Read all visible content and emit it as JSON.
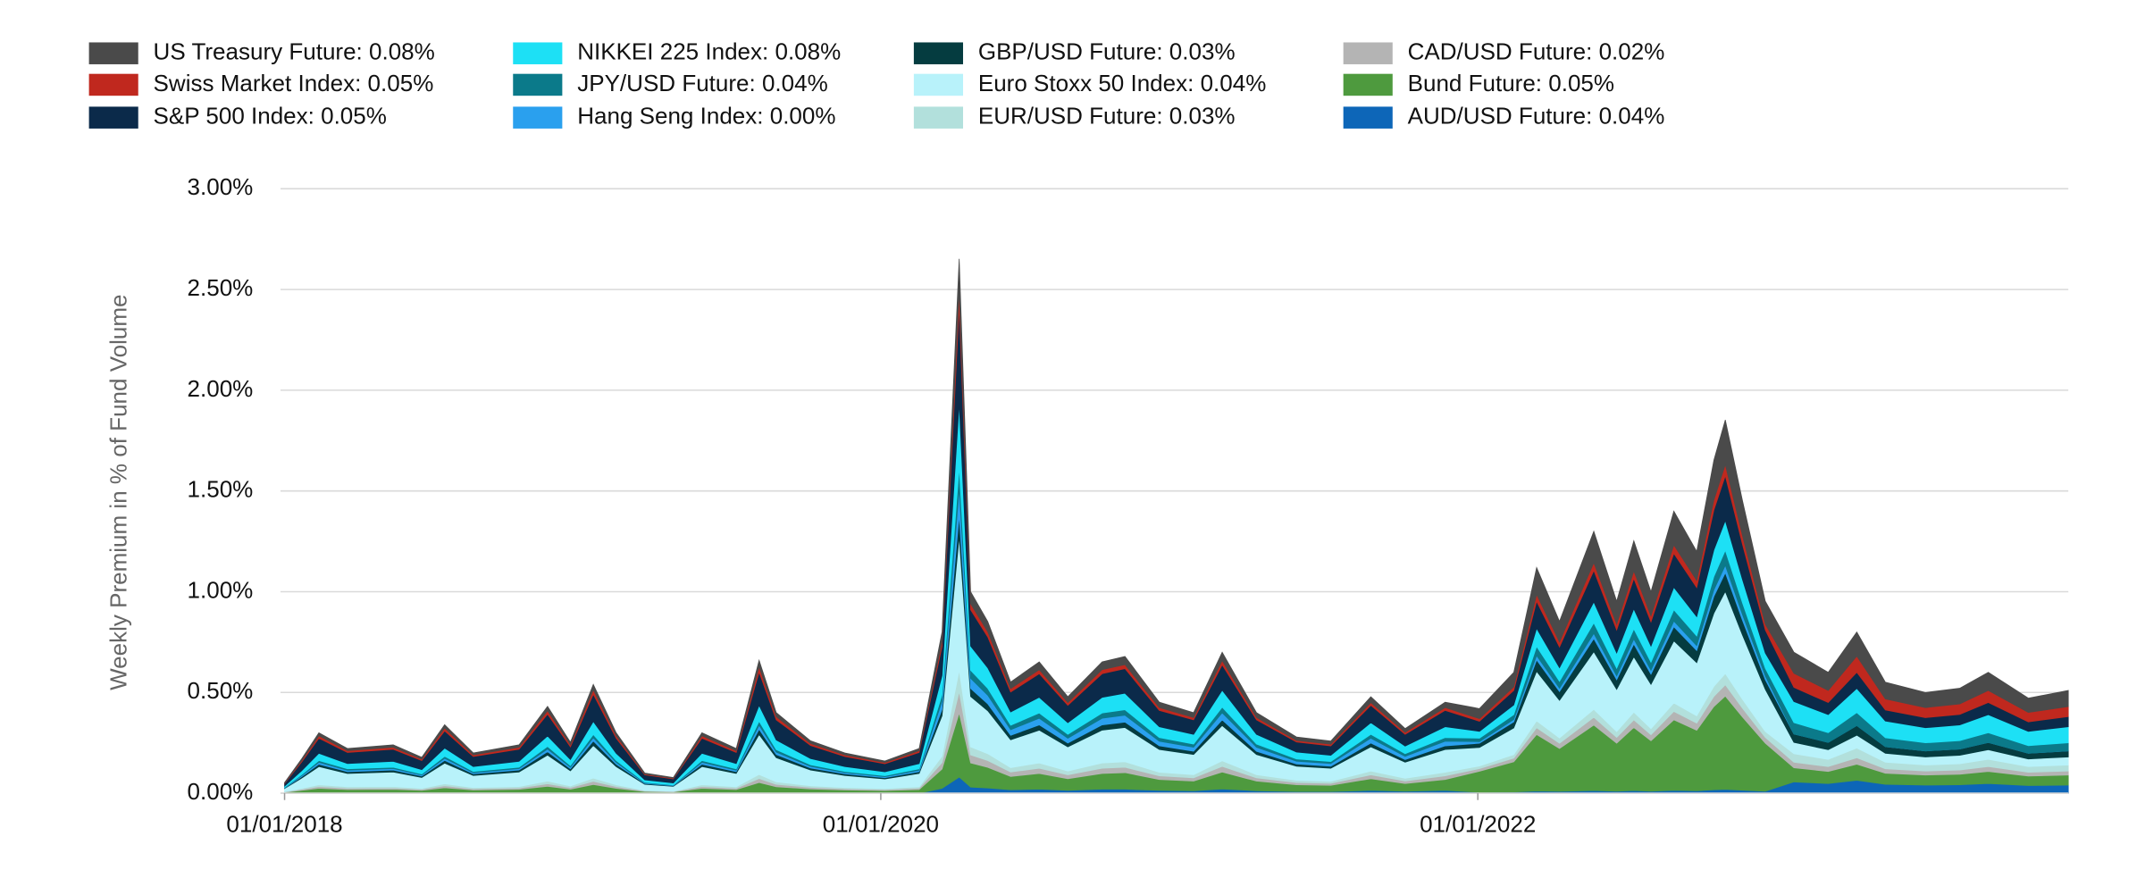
{
  "chart_data": {
    "type": "stacked_area",
    "y_label": "Weekly Premium in % of Fund Volume",
    "ylim": [
      0,
      3
    ],
    "yticks": [
      {
        "value": 0,
        "label": "0.00%"
      },
      {
        "value": 0.5,
        "label": "0.50%"
      },
      {
        "value": 1,
        "label": "1.00%"
      },
      {
        "value": 1.5,
        "label": "1.50%"
      },
      {
        "value": 2,
        "label": "2.00%"
      },
      {
        "value": 2.5,
        "label": "2.50%"
      },
      {
        "value": 3,
        "label": "3.00%"
      }
    ],
    "xlim": [
      "2017-12-27",
      "2023-12-25"
    ],
    "xticks": [
      {
        "value": "2018-01-01",
        "label": "01/01/2018"
      },
      {
        "value": "2020-01-01",
        "label": "01/01/2020"
      },
      {
        "value": "2022-01-01",
        "label": "01/01/2022"
      }
    ],
    "grid": true,
    "legend": "top",
    "x": [
      "2018-01-01",
      "2018-01-22",
      "2018-02-12",
      "2018-03-19",
      "2018-05-14",
      "2018-06-18",
      "2018-07-16",
      "2018-08-20",
      "2018-10-15",
      "2018-11-19",
      "2018-12-17",
      "2019-01-14",
      "2019-02-11",
      "2019-03-18",
      "2019-04-22",
      "2019-05-27",
      "2019-07-08",
      "2019-08-05",
      "2019-08-26",
      "2019-10-07",
      "2019-11-18",
      "2020-01-06",
      "2020-02-17",
      "2020-03-16",
      "2020-04-06",
      "2020-04-20",
      "2020-05-11",
      "2020-06-08",
      "2020-07-13",
      "2020-08-17",
      "2020-09-28",
      "2020-10-26",
      "2020-12-07",
      "2021-01-18",
      "2021-02-22",
      "2021-04-05",
      "2021-05-24",
      "2021-07-05",
      "2021-08-23",
      "2021-10-04",
      "2021-11-22",
      "2022-01-03",
      "2022-02-14",
      "2022-03-14",
      "2022-04-11",
      "2022-05-23",
      "2022-06-20",
      "2022-07-11",
      "2022-08-01",
      "2022-08-29",
      "2022-09-26",
      "2022-10-17",
      "2022-10-31",
      "2022-11-21",
      "2022-12-19",
      "2023-01-23",
      "2023-03-06",
      "2023-04-10",
      "2023-05-15",
      "2023-07-03",
      "2023-08-14",
      "2023-09-18",
      "2023-11-06",
      "2023-12-25"
    ],
    "series": [
      {
        "name": "US Treasury Future: 0.08%",
        "color": "#4a4a4a",
        "values": [
          0.003,
          0.009,
          0.015,
          0.011,
          0.012,
          0.009,
          0.017,
          0.01,
          0.012,
          0.022,
          0.013,
          0.027,
          0.015,
          0.005,
          0.004,
          0.015,
          0.011,
          0.033,
          0.02,
          0.013,
          0.01,
          0.008,
          0.011,
          0.048,
          0.159,
          0.06,
          0.051,
          0.033,
          0.039,
          0.029,
          0.039,
          0.041,
          0.027,
          0.024,
          0.042,
          0.024,
          0.017,
          0.016,
          0.029,
          0.019,
          0.027,
          0.05,
          0.072,
          0.134,
          0.102,
          0.156,
          0.114,
          0.15,
          0.12,
          0.168,
          0.144,
          0.198,
          0.222,
          0.174,
          0.114,
          0.105,
          0.09,
          0.12,
          0.083,
          0.075,
          0.078,
          0.09,
          0.071,
          0.08
        ]
      },
      {
        "name": "Swiss Market Index: 0.05%",
        "color": "#c0281e",
        "values": [
          0.002,
          0.007,
          0.012,
          0.009,
          0.01,
          0.007,
          0.014,
          0.008,
          0.01,
          0.017,
          0.01,
          0.022,
          0.012,
          0.004,
          0.003,
          0.012,
          0.009,
          0.026,
          0.016,
          0.01,
          0.008,
          0.006,
          0.009,
          0.024,
          0.08,
          0.03,
          0.026,
          0.017,
          0.02,
          0.014,
          0.02,
          0.02,
          0.014,
          0.012,
          0.021,
          0.012,
          0.008,
          0.008,
          0.014,
          0.01,
          0.014,
          0.013,
          0.018,
          0.034,
          0.026,
          0.039,
          0.029,
          0.038,
          0.03,
          0.042,
          0.036,
          0.05,
          0.056,
          0.044,
          0.029,
          0.07,
          0.06,
          0.08,
          0.055,
          0.05,
          0.052,
          0.06,
          0.047,
          0.05
        ]
      },
      {
        "name": "S&P 500 Index: 0.05%",
        "color": "#0b2a4a",
        "values": [
          0.013,
          0.043,
          0.075,
          0.055,
          0.06,
          0.045,
          0.085,
          0.05,
          0.06,
          0.108,
          0.063,
          0.135,
          0.075,
          0.025,
          0.02,
          0.075,
          0.055,
          0.165,
          0.1,
          0.065,
          0.05,
          0.04,
          0.055,
          0.144,
          0.477,
          0.18,
          0.153,
          0.099,
          0.117,
          0.086,
          0.117,
          0.122,
          0.081,
          0.072,
          0.126,
          0.072,
          0.05,
          0.047,
          0.086,
          0.058,
          0.081,
          0.05,
          0.072,
          0.134,
          0.102,
          0.156,
          0.114,
          0.15,
          0.12,
          0.168,
          0.144,
          0.198,
          0.222,
          0.174,
          0.114,
          0.07,
          0.06,
          0.08,
          0.055,
          0.05,
          0.052,
          0.06,
          0.047,
          0.05
        ]
      },
      {
        "name": "NIKKEI 225 Index: 0.08%",
        "color": "#1de0f5",
        "values": [
          0.006,
          0.02,
          0.036,
          0.026,
          0.029,
          0.022,
          0.041,
          0.024,
          0.029,
          0.052,
          0.03,
          0.065,
          0.036,
          0.012,
          0.01,
          0.036,
          0.026,
          0.079,
          0.048,
          0.031,
          0.024,
          0.019,
          0.026,
          0.096,
          0.318,
          0.12,
          0.102,
          0.066,
          0.078,
          0.058,
          0.078,
          0.082,
          0.054,
          0.048,
          0.084,
          0.048,
          0.034,
          0.031,
          0.058,
          0.038,
          0.054,
          0.034,
          0.048,
          0.09,
          0.068,
          0.104,
          0.076,
          0.1,
          0.08,
          0.112,
          0.096,
          0.132,
          0.148,
          0.116,
          0.076,
          0.105,
          0.09,
          0.12,
          0.083,
          0.075,
          0.078,
          0.09,
          0.071,
          0.08
        ]
      },
      {
        "name": "JPY/USD Future: 0.04%",
        "color": "#0b7a8a",
        "values": [
          0.002,
          0.005,
          0.009,
          0.007,
          0.007,
          0.005,
          0.01,
          0.006,
          0.007,
          0.013,
          0.008,
          0.016,
          0.009,
          0.003,
          0.002,
          0.009,
          0.007,
          0.02,
          0.012,
          0.008,
          0.006,
          0.005,
          0.007,
          0.032,
          0.106,
          0.04,
          0.034,
          0.022,
          0.026,
          0.019,
          0.026,
          0.027,
          0.018,
          0.016,
          0.028,
          0.016,
          0.011,
          0.01,
          0.019,
          0.013,
          0.018,
          0.017,
          0.024,
          0.045,
          0.034,
          0.052,
          0.038,
          0.05,
          0.04,
          0.056,
          0.048,
          0.066,
          0.074,
          0.058,
          0.038,
          0.056,
          0.048,
          0.064,
          0.044,
          0.04,
          0.042,
          0.048,
          0.038,
          0.04
        ]
      },
      {
        "name": "Hang Seng Index: 0.00%",
        "color": "#2aa0ee",
        "values": [
          0.002,
          0.005,
          0.009,
          0.007,
          0.007,
          0.005,
          0.01,
          0.006,
          0.007,
          0.013,
          0.008,
          0.016,
          0.009,
          0.003,
          0.002,
          0.009,
          0.007,
          0.02,
          0.012,
          0.008,
          0.006,
          0.005,
          0.007,
          0.04,
          0.133,
          0.05,
          0.043,
          0.028,
          0.033,
          0.024,
          0.033,
          0.034,
          0.023,
          0.02,
          0.035,
          0.02,
          0.014,
          0.013,
          0.024,
          0.016,
          0.023,
          0.008,
          0.012,
          0.022,
          0.017,
          0.026,
          0.019,
          0.025,
          0.02,
          0.028,
          0.024,
          0.033,
          0.037,
          0.029,
          0.019,
          0,
          0,
          0,
          0,
          0,
          0,
          0,
          0,
          0
        ]
      },
      {
        "name": "GBP/USD Future: 0.03%",
        "color": "#053c40",
        "values": [
          0.002,
          0.007,
          0.012,
          0.009,
          0.01,
          0.007,
          0.014,
          0.008,
          0.01,
          0.017,
          0.01,
          0.022,
          0.012,
          0.004,
          0.003,
          0.012,
          0.009,
          0.026,
          0.016,
          0.01,
          0.008,
          0.006,
          0.009,
          0.032,
          0.106,
          0.04,
          0.034,
          0.022,
          0.026,
          0.019,
          0.026,
          0.027,
          0.018,
          0.016,
          0.028,
          0.016,
          0.011,
          0.01,
          0.019,
          0.013,
          0.018,
          0.021,
          0.03,
          0.056,
          0.043,
          0.065,
          0.048,
          0.063,
          0.05,
          0.07,
          0.06,
          0.083,
          0.093,
          0.073,
          0.048,
          0.042,
          0.036,
          0.048,
          0.033,
          0.03,
          0.031,
          0.036,
          0.028,
          0.03
        ]
      },
      {
        "name": "Euro Stoxx 50 Index: 0.04%",
        "color": "#b8f2fa",
        "values": [
          0.015,
          0.051,
          0.09,
          0.066,
          0.072,
          0.054,
          0.102,
          0.06,
          0.072,
          0.129,
          0.075,
          0.162,
          0.09,
          0.03,
          0.024,
          0.09,
          0.066,
          0.198,
          0.12,
          0.078,
          0.06,
          0.048,
          0.066,
          0.2,
          0.663,
          0.25,
          0.213,
          0.138,
          0.163,
          0.12,
          0.163,
          0.17,
          0.113,
          0.1,
          0.175,
          0.1,
          0.07,
          0.065,
          0.12,
          0.08,
          0.113,
          0.092,
          0.132,
          0.246,
          0.187,
          0.286,
          0.209,
          0.275,
          0.22,
          0.308,
          0.264,
          0.363,
          0.407,
          0.319,
          0.209,
          0.056,
          0.048,
          0.064,
          0.044,
          0.04,
          0.042,
          0.048,
          0.038,
          0.04
        ]
      },
      {
        "name": "EUR/USD Future: 0.03%",
        "color": "#b2e0dc",
        "values": [
          0.002,
          0.005,
          0.009,
          0.007,
          0.007,
          0.005,
          0.01,
          0.006,
          0.007,
          0.013,
          0.008,
          0.016,
          0.009,
          0.003,
          0.002,
          0.009,
          0.007,
          0.02,
          0.012,
          0.008,
          0.006,
          0.005,
          0.007,
          0.032,
          0.106,
          0.04,
          0.034,
          0.022,
          0.026,
          0.019,
          0.026,
          0.027,
          0.018,
          0.016,
          0.028,
          0.016,
          0.011,
          0.01,
          0.019,
          0.013,
          0.018,
          0.013,
          0.018,
          0.034,
          0.026,
          0.039,
          0.029,
          0.038,
          0.03,
          0.042,
          0.036,
          0.05,
          0.056,
          0.044,
          0.029,
          0.042,
          0.036,
          0.048,
          0.033,
          0.03,
          0.031,
          0.036,
          0.028,
          0.03
        ]
      },
      {
        "name": "CAD/USD Future: 0.02%",
        "color": "#b4b4b4",
        "values": [
          0.002,
          0.005,
          0.009,
          0.007,
          0.007,
          0.005,
          0.01,
          0.006,
          0.007,
          0.013,
          0.008,
          0.016,
          0.009,
          0.003,
          0.002,
          0.009,
          0.007,
          0.02,
          0.012,
          0.008,
          0.006,
          0.005,
          0.007,
          0.032,
          0.106,
          0.04,
          0.034,
          0.022,
          0.026,
          0.019,
          0.026,
          0.027,
          0.018,
          0.016,
          0.028,
          0.016,
          0.011,
          0.01,
          0.019,
          0.013,
          0.018,
          0.013,
          0.018,
          0.034,
          0.026,
          0.039,
          0.029,
          0.038,
          0.03,
          0.042,
          0.036,
          0.05,
          0.056,
          0.044,
          0.029,
          0.028,
          0.024,
          0.032,
          0.022,
          0.02,
          0.021,
          0.024,
          0.019,
          0.02
        ]
      },
      {
        "name": "Bund Future: 0.05%",
        "color": "#4e9a3e",
        "values": [
          0.004,
          0.014,
          0.024,
          0.018,
          0.019,
          0.014,
          0.027,
          0.016,
          0.019,
          0.034,
          0.02,
          0.043,
          0.024,
          0.008,
          0.006,
          0.024,
          0.018,
          0.053,
          0.032,
          0.021,
          0.016,
          0.013,
          0.018,
          0.096,
          0.318,
          0.12,
          0.102,
          0.066,
          0.078,
          0.058,
          0.078,
          0.082,
          0.054,
          0.048,
          0.084,
          0.048,
          0.034,
          0.031,
          0.058,
          0.038,
          0.054,
          0.105,
          0.15,
          0.28,
          0.213,
          0.325,
          0.238,
          0.313,
          0.25,
          0.35,
          0.3,
          0.413,
          0.463,
          0.363,
          0.238,
          0.07,
          0.06,
          0.08,
          0.055,
          0.05,
          0.052,
          0.06,
          0.047,
          0.05
        ]
      },
      {
        "name": "AUD/USD Future: 0.04%",
        "color": "#0d66b8",
        "values": [
          0,
          0,
          0,
          0,
          0,
          0,
          0,
          0,
          0,
          0,
          0,
          0,
          0,
          0,
          0,
          0,
          0,
          0,
          0,
          0,
          0,
          0,
          0,
          0.024,
          0.08,
          0.03,
          0.026,
          0.017,
          0.02,
          0.014,
          0.02,
          0.02,
          0.014,
          0.012,
          0.021,
          0.012,
          0.008,
          0.008,
          0.014,
          0.01,
          0.014,
          0.004,
          0.006,
          0.011,
          0.009,
          0.013,
          0.01,
          0.013,
          0.01,
          0.014,
          0.012,
          0.017,
          0.019,
          0.015,
          0.01,
          0.056,
          0.048,
          0.064,
          0.044,
          0.04,
          0.042,
          0.048,
          0.038,
          0.04
        ]
      }
    ]
  }
}
